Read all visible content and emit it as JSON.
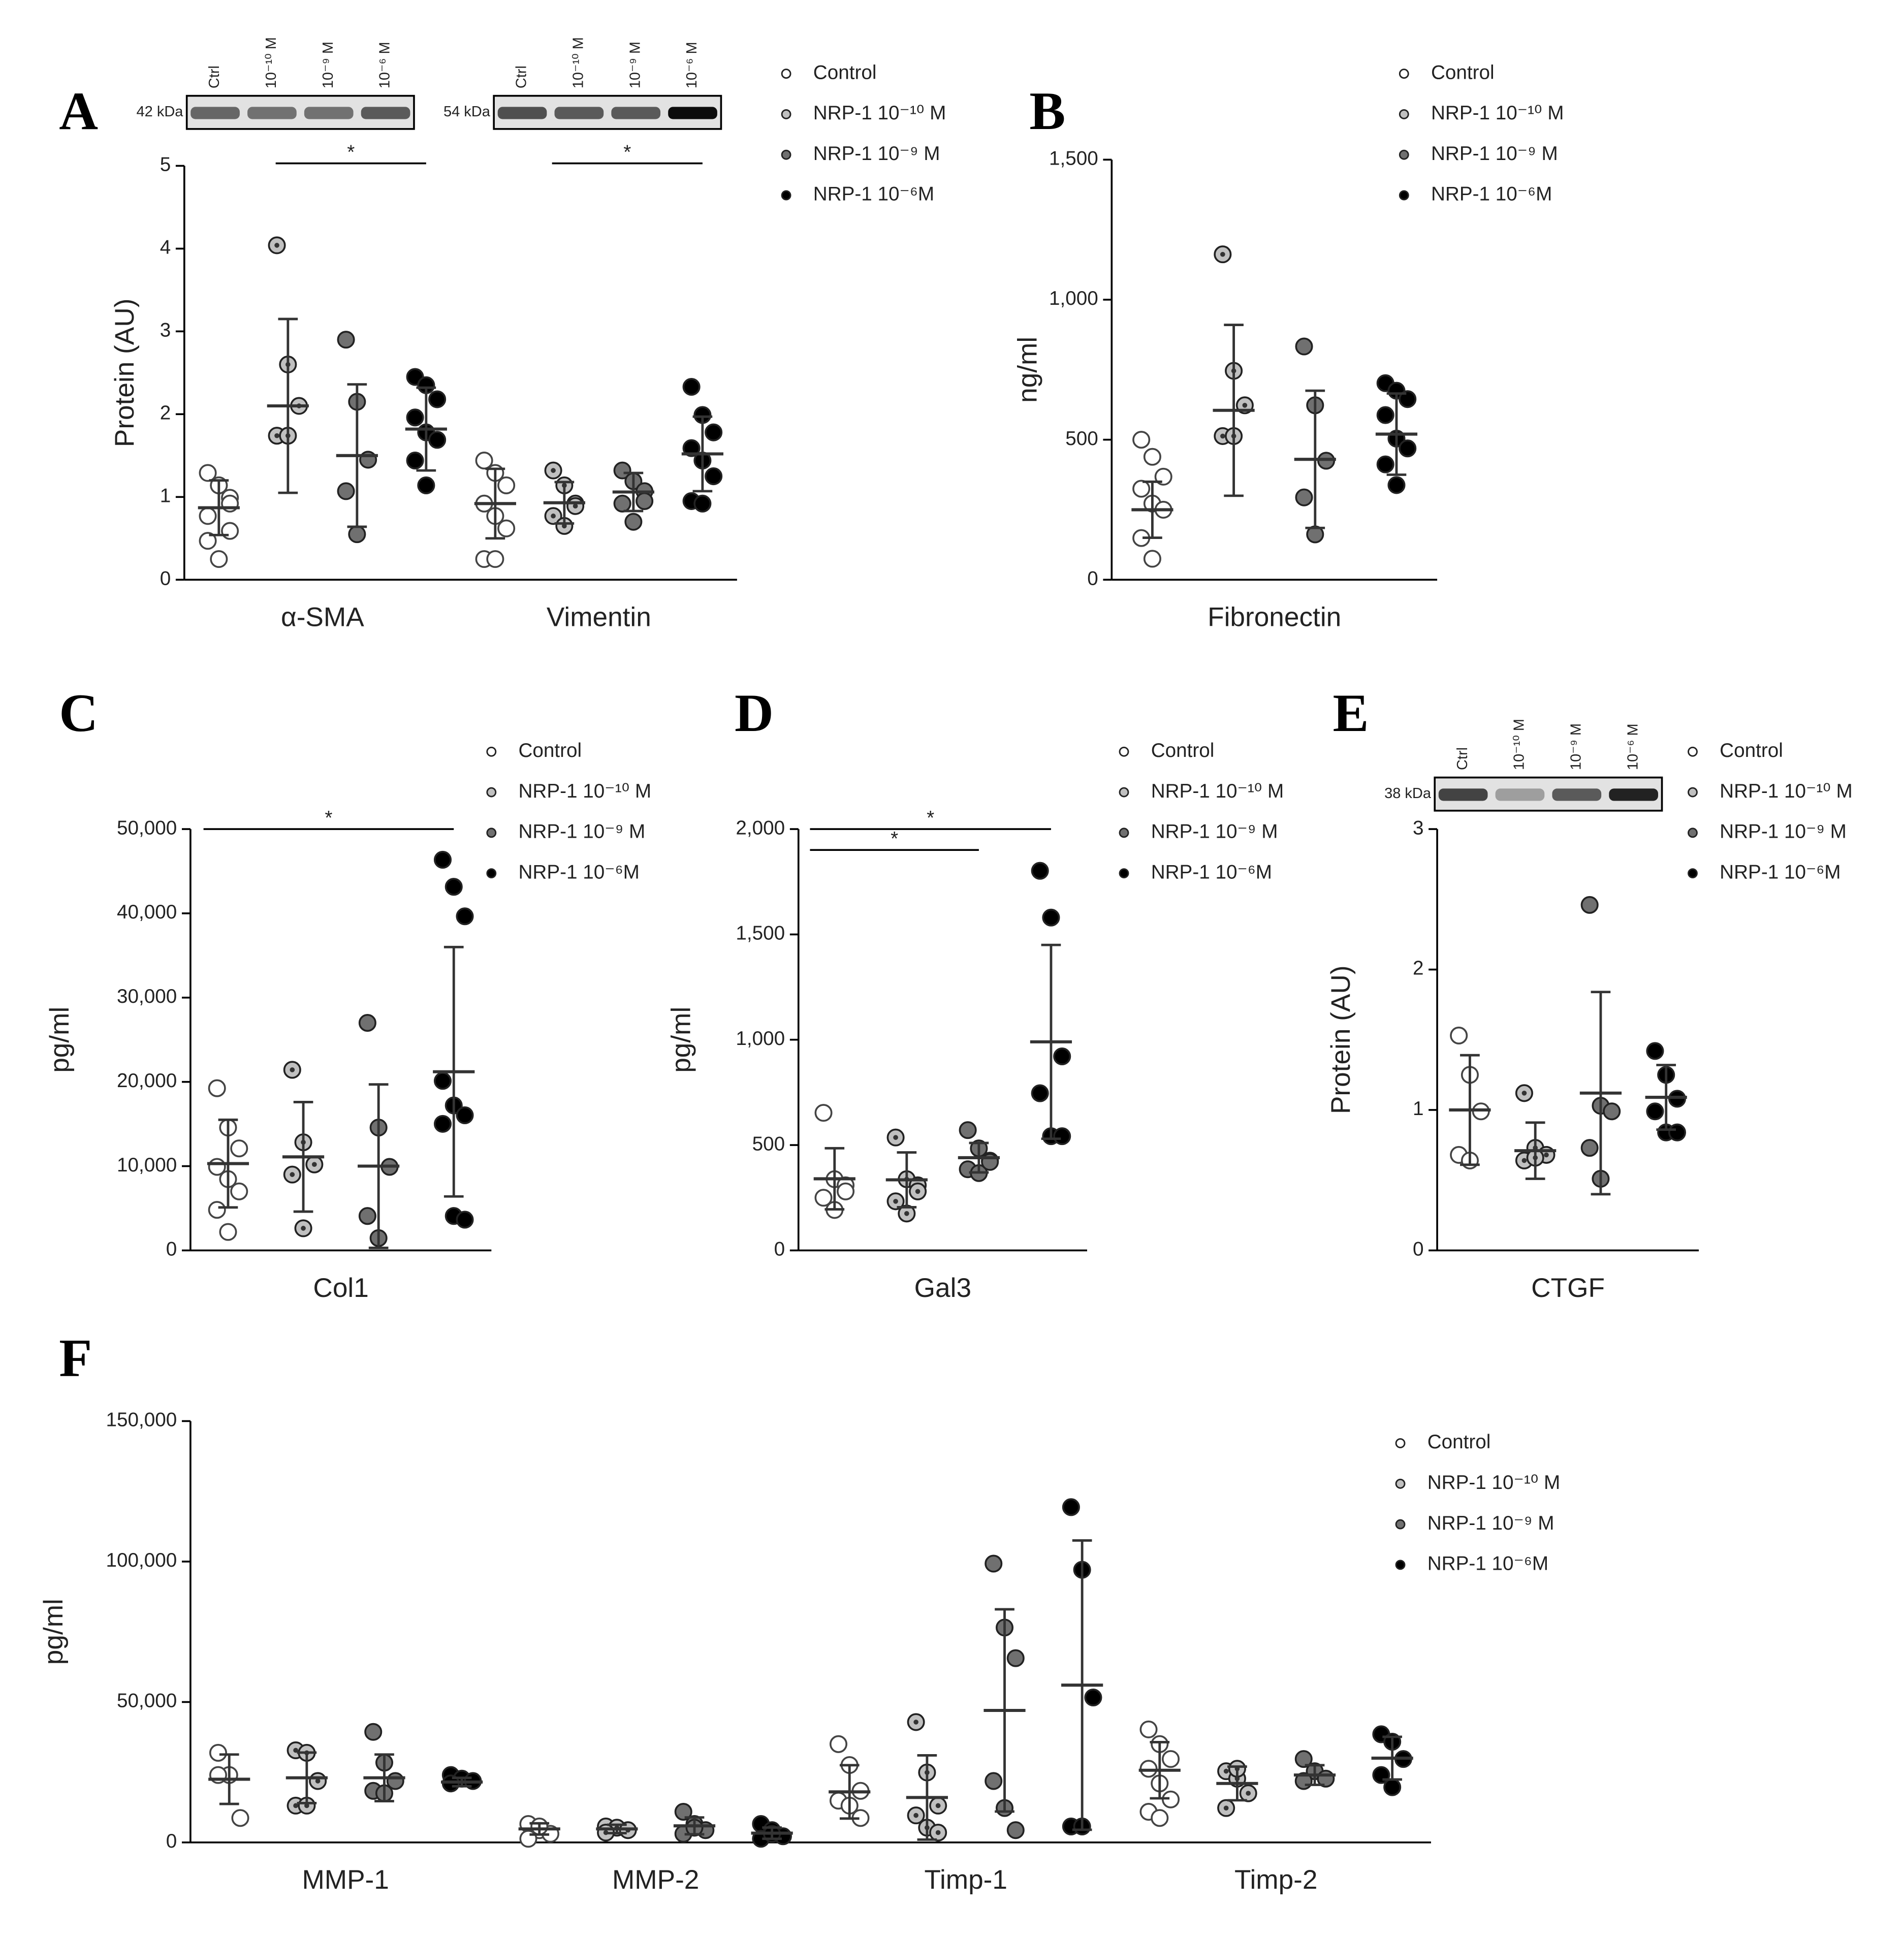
{
  "chart_data": [
    {
      "type": "dotplot",
      "panel": "A",
      "ylabel": "Protein (AU)",
      "categories": [
        "α-SMA",
        "Vimentin"
      ],
      "ylim": [
        0,
        5
      ],
      "yticks": [
        0,
        1,
        2,
        3,
        4,
        5
      ],
      "significance": [
        "*",
        "*"
      ],
      "blots": [
        {
          "kda": "42 kDa",
          "lanes": [
            "Ctrl",
            "10⁻¹⁰ M",
            "10⁻⁹ M",
            "10⁻⁶ M"
          ]
        },
        {
          "kda": "54 kDa",
          "lanes": [
            "Ctrl",
            "10⁻¹⁰ M",
            "10⁻⁹ M",
            "10⁻⁶ M"
          ]
        }
      ],
      "series": [
        {
          "name": "Control",
          "color": "#ffffff",
          "points": [
            [
              1.29,
              1.14,
              0.99,
              0.77,
              1.14,
              0.59,
              0.47,
              0.25,
              0.92
            ],
            [
              1.44,
              1.29,
              1.14,
              0.92,
              0.77,
              0.62,
              0.25,
              0.25
            ]
          ],
          "mean": [
            0.87,
            0.92
          ],
          "sd": [
            0.33,
            0.42
          ]
        },
        {
          "name": "NRP-1 10⁻¹⁰ M",
          "color": "#c0c0c0",
          "points": [
            [
              4.04,
              2.6,
              2.1,
              1.74,
              1.74
            ],
            [
              1.32,
              1.14,
              0.92,
              0.77,
              0.65,
              0.89
            ]
          ],
          "mean": [
            2.1,
            0.93
          ],
          "sd": [
            1.05,
            0.25
          ]
        },
        {
          "name": "NRP-1 10⁻⁹ M",
          "color": "#707070",
          "points": [
            [
              2.9,
              2.15,
              1.45,
              1.07,
              0.55
            ],
            [
              1.32,
              1.19,
              1.07,
              0.92,
              0.7,
              0.95
            ]
          ],
          "mean": [
            1.5,
            1.06
          ],
          "sd": [
            0.86,
            0.23
          ]
        },
        {
          "name": "NRP-1 10⁻⁶M",
          "color": "#000000",
          "points": [
            [
              2.45,
              2.35,
              2.18,
              1.96,
              1.78,
              1.69,
              1.44,
              1.14
            ],
            [
              2.33,
              1.99,
              1.78,
              1.59,
              1.44,
              1.25,
              0.95,
              0.92
            ]
          ],
          "mean": [
            1.82,
            1.52
          ],
          "sd": [
            0.5,
            0.45
          ]
        }
      ]
    },
    {
      "type": "dotplot",
      "panel": "B",
      "ylabel": "ng/ml",
      "categories": [
        "Fibronectin"
      ],
      "ylim": [
        0,
        1500
      ],
      "yticks": [
        0,
        500,
        {
          "value": 1000,
          "label": "1,000"
        },
        {
          "value": 1500,
          "label": "1,500"
        }
      ],
      "series": [
        {
          "name": "Control",
          "color": "#ffffff",
          "points": [
            [
              500,
              439,
              368,
              325,
              272,
              250,
              149,
              75
            ]
          ],
          "mean": [
            250
          ],
          "sd": [
            100
          ]
        },
        {
          "name": "NRP-1 10⁻¹⁰ M",
          "color": "#c0c0c0",
          "points": [
            [
              1162,
              746,
              623,
              513,
              513
            ]
          ],
          "mean": [
            605
          ],
          "sd": [
            305
          ]
        },
        {
          "name": "NRP-1 10⁻⁹ M",
          "color": "#707070",
          "points": [
            [
              833,
              623,
              425,
              294,
              162
            ]
          ],
          "mean": [
            430
          ],
          "sd": [
            245
          ]
        },
        {
          "name": "NRP-1 10⁻⁶M",
          "color": "#000000",
          "points": [
            [
              702,
              675,
              645,
              588,
              504,
              469,
              412,
              338
            ]
          ],
          "mean": [
            520
          ],
          "sd": [
            145
          ]
        }
      ]
    },
    {
      "type": "dotplot",
      "panel": "C",
      "ylabel": "pg/ml",
      "categories": [
        "Col1"
      ],
      "ylim": [
        0,
        50000
      ],
      "yticks": [
        0,
        {
          "value": 10000,
          "label": "10,000"
        },
        {
          "value": 20000,
          "label": "20,000"
        },
        {
          "value": 30000,
          "label": "30,000"
        },
        {
          "value": 40000,
          "label": "40,000"
        },
        {
          "value": 50000,
          "label": "50,000"
        }
      ],
      "significance": [
        "*"
      ],
      "series": [
        {
          "name": "Control",
          "color": "#ffffff",
          "points": [
            [
              19245,
              14577,
              12100,
              9913,
              8455,
              7000,
              4811,
              2187
            ]
          ],
          "mean": [
            10300
          ],
          "sd": [
            5200
          ]
        },
        {
          "name": "NRP-1 10⁻¹⁰ M",
          "color": "#c0c0c0",
          "points": [
            [
              21430,
              12830,
              10200,
              9000,
              2624
            ]
          ],
          "mean": [
            11100
          ],
          "sd": [
            6500
          ]
        },
        {
          "name": "NRP-1 10⁻⁹ M",
          "color": "#707070",
          "points": [
            [
              27000,
              14577,
              9913,
              4082,
              1458
            ]
          ],
          "mean": [
            10000
          ],
          "sd": [
            9700
          ]
        },
        {
          "name": "NRP-1 10⁻⁶M",
          "color": "#000000",
          "points": [
            [
              46360,
              43150,
              39650,
              20118,
              17200,
              16035,
              15015,
              4082,
              3644
            ]
          ],
          "mean": [
            21200
          ],
          "sd": [
            14800
          ]
        }
      ]
    },
    {
      "type": "dotplot",
      "panel": "D",
      "ylabel": "pg/ml",
      "categories": [
        "Gal3"
      ],
      "ylim": [
        0,
        2000
      ],
      "yticks": [
        0,
        500,
        {
          "value": 1000,
          "label": "1,000"
        },
        {
          "value": 1500,
          "label": "1,500"
        },
        {
          "value": 2000,
          "label": "2,000"
        }
      ],
      "significance": [
        "*",
        "*"
      ],
      "series": [
        {
          "name": "Control",
          "color": "#ffffff",
          "points": [
            [
              653,
              338,
              309,
              250,
              192,
              280
            ]
          ],
          "mean": [
            340
          ],
          "sd": [
            145
          ]
        },
        {
          "name": "NRP-1 10⁻¹⁰ M",
          "color": "#c0c0c0",
          "points": [
            [
              536,
              338,
              309,
              233,
              175,
              280
            ]
          ],
          "mean": [
            335
          ],
          "sd": [
            130
          ]
        },
        {
          "name": "NRP-1 10⁻⁹ M",
          "color": "#707070",
          "points": [
            [
              571,
              484,
              426,
              385,
              367,
              420
            ]
          ],
          "mean": [
            440
          ],
          "sd": [
            70
          ]
        },
        {
          "name": "NRP-1 10⁻⁶M",
          "color": "#000000",
          "points": [
            [
              1802,
              1580,
              921,
              746,
              542,
              542
            ]
          ],
          "mean": [
            990
          ],
          "sd": [
            460
          ]
        }
      ]
    },
    {
      "type": "dotplot",
      "panel": "E",
      "ylabel": "Protein (AU)",
      "categories": [
        "CTGF"
      ],
      "ylim": [
        0,
        3
      ],
      "yticks": [
        0,
        1,
        2,
        3
      ],
      "blots": [
        {
          "kda": "38 kDa",
          "lanes": [
            "Ctrl",
            "10⁻¹⁰ M",
            "10⁻⁹ M",
            "10⁻⁶ M"
          ]
        }
      ],
      "series": [
        {
          "name": "Control",
          "color": "#ffffff",
          "points": [
            [
              1.53,
              1.25,
              0.99,
              0.68,
              0.64
            ]
          ],
          "mean": [
            1.0
          ],
          "sd": [
            0.39
          ]
        },
        {
          "name": "NRP-1 10⁻¹⁰ M",
          "color": "#c0c0c0",
          "points": [
            [
              1.12,
              0.73,
              0.68,
              0.64,
              0.66
            ]
          ],
          "mean": [
            0.71
          ],
          "sd": [
            0.2
          ]
        },
        {
          "name": "NRP-1 10⁻⁹ M",
          "color": "#707070",
          "points": [
            [
              2.46,
              1.03,
              0.99,
              0.73,
              0.51
            ]
          ],
          "mean": [
            1.12
          ],
          "sd": [
            0.72
          ]
        },
        {
          "name": "NRP-1 10⁻⁶M",
          "color": "#000000",
          "points": [
            [
              1.42,
              1.25,
              1.08,
              0.99,
              0.84,
              0.84
            ]
          ],
          "mean": [
            1.09
          ],
          "sd": [
            0.23
          ]
        }
      ]
    },
    {
      "type": "dotplot",
      "panel": "F",
      "ylabel": "pg/ml",
      "categories": [
        "MMP-1",
        "MMP-2",
        "Timp-1",
        "Timp-2"
      ],
      "ylim": [
        0,
        150000
      ],
      "yticks": [
        0,
        {
          "value": 50000,
          "label": "50,000"
        },
        {
          "value": 100000,
          "label": "100,000"
        },
        {
          "value": 150000,
          "label": "150,000"
        }
      ],
      "series": [
        {
          "name": "Control",
          "color": "#ffffff",
          "points": [
            [
              31900,
              24000,
              8700,
              24000
            ],
            [
              6560,
              4370,
              3060,
              1300,
              5680
            ],
            [
              35000,
              27550,
              18360,
              14870,
              13100,
              8700
            ],
            [
              40230,
              35000,
              29700,
              26230,
              21000,
              15300,
              10900,
              8700
            ]
          ],
          "mean": [
            22500,
            4800,
            18000,
            25700
          ],
          "sd": [
            8800,
            2000,
            9500,
            10000
          ]
        },
        {
          "name": "NRP-1 10⁻¹⁰ M",
          "color": "#c0c0c0",
          "points": [
            [
              32800,
              31900,
              21860,
              13100,
              13100
            ],
            [
              5680,
              5250,
              4370,
              3500
            ],
            [
              42850,
              24900,
              13100,
              9620,
              5250,
              3500
            ],
            [
              25360,
              22700,
              17500,
              12240,
              26230
            ]
          ],
          "mean": [
            23000,
            4800,
            16000,
            21000
          ],
          "sd": [
            9000,
            1500,
            15000,
            6000
          ]
        },
        {
          "name": "NRP-1 10⁻⁹ M",
          "color": "#707070",
          "points": [
            [
              39350,
              28400,
              21860,
              18360,
              17500
            ],
            [
              10900,
              6560,
              4370,
              3060,
              5250
            ],
            [
              99260,
              76500,
              65600,
              21860,
              12240,
              4370
            ],
            [
              29700,
              25360,
              22700,
              21860
            ]
          ],
          "mean": [
            23000,
            5900,
            47000,
            24000
          ],
          "sd": [
            8300,
            3000,
            36000,
            3500
          ]
        },
        {
          "name": "NRP-1 10⁻⁶M",
          "color": "#000000",
          "points": [
            [
              24000,
              22700,
              21860,
              21000
            ],
            [
              6560,
              4370,
              2190,
              1300,
              3060
            ],
            [
              119370,
              97070,
              51600,
              5680,
              5680
            ],
            [
              38500,
              35860,
              29700,
              24000,
              19670
            ]
          ],
          "mean": [
            21500,
            3300,
            56000,
            30000
          ],
          "sd": [
            1500,
            2000,
            51500,
            7600
          ]
        }
      ]
    }
  ]
}
